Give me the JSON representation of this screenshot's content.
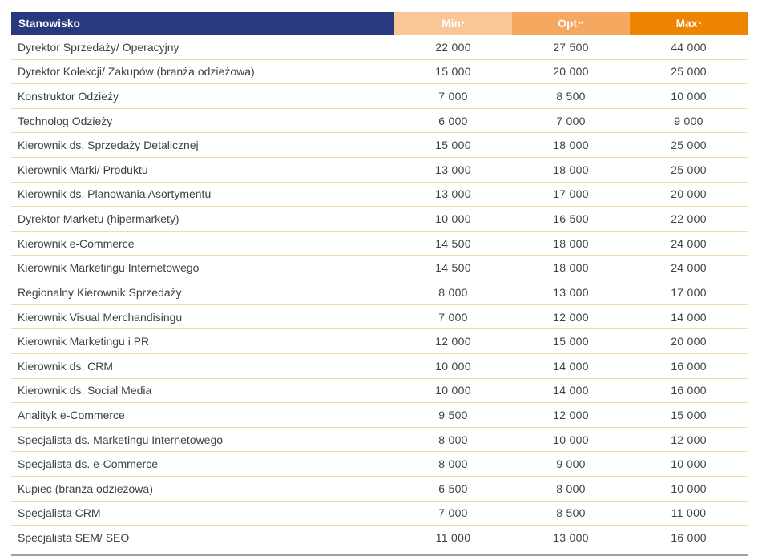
{
  "table": {
    "header": {
      "position": "Stanowisko",
      "min": "Min",
      "min_note": "*",
      "opt": "Opt",
      "opt_note": "**",
      "max": "Max",
      "max_note": "*"
    },
    "rows": [
      {
        "position": "Dyrektor Sprzedaży/ Operacyjny",
        "min": "22 000",
        "opt": "27 500",
        "max": "44 000"
      },
      {
        "position": "Dyrektor Kolekcji/ Zakupów (branża odzieżowa)",
        "min": "15 000",
        "opt": "20 000",
        "max": "25 000"
      },
      {
        "position": "Konstruktor Odzieży",
        "min": "7 000",
        "opt": "8 500",
        "max": "10 000"
      },
      {
        "position": "Technolog Odzieży",
        "min": "6 000",
        "opt": "7 000",
        "max": "9 000"
      },
      {
        "position": "Kierownik ds. Sprzedaży Detalicznej",
        "min": "15 000",
        "opt": "18 000",
        "max": "25 000"
      },
      {
        "position": "Kierownik Marki/ Produktu",
        "min": "13 000",
        "opt": "18 000",
        "max": "25 000"
      },
      {
        "position": "Kierownik ds. Planowania Asortymentu",
        "min": "13 000",
        "opt": "17 000",
        "max": "20 000"
      },
      {
        "position": "Dyrektor Marketu (hipermarkety)",
        "min": "10 000",
        "opt": "16 500",
        "max": "22 000"
      },
      {
        "position": "Kierownik e-Commerce",
        "min": "14 500",
        "opt": "18 000",
        "max": "24 000"
      },
      {
        "position": "Kierownik Marketingu Internetowego",
        "min": "14 500",
        "opt": "18 000",
        "max": "24 000"
      },
      {
        "position": "Regionalny Kierownik Sprzedaży",
        "min": "8 000",
        "opt": "13 000",
        "max": "17 000"
      },
      {
        "position": "Kierownik Visual Merchandisingu",
        "min": "7 000",
        "opt": "12 000",
        "max": "14 000"
      },
      {
        "position": "Kierownik Marketingu i PR",
        "min": "12 000",
        "opt": "15 000",
        "max": "20 000"
      },
      {
        "position": "Kierownik ds. CRM",
        "min": "10 000",
        "opt": "14 000",
        "max": "16 000"
      },
      {
        "position": "Kierownik ds. Social Media",
        "min": "10 000",
        "opt": "14 000",
        "max": "16 000"
      },
      {
        "position": "Analityk e-Commerce",
        "min": "9 500",
        "opt": "12 000",
        "max": "15 000"
      },
      {
        "position": "Specjalista ds. Marketingu Internetowego",
        "min": "8 000",
        "opt": "10 000",
        "max": "12 000"
      },
      {
        "position": "Specjalista ds. e-Commerce",
        "min": "8 000",
        "opt": "9 000",
        "max": "10 000"
      },
      {
        "position": "Kupiec (branża odzieżowa)",
        "min": "6 500",
        "opt": "8 000",
        "max": "10 000"
      },
      {
        "position": "Specjalista CRM",
        "min": "7 000",
        "opt": "8 500",
        "max": "11 000"
      },
      {
        "position": "Specjalista SEM/ SEO",
        "min": "11 000",
        "opt": "13 000",
        "max": "16 000"
      }
    ]
  },
  "colors": {
    "header_navy": "#283a7d",
    "min_column_orange": "#f9c696",
    "opt_column_orange": "#f5a85f",
    "max_column_orange": "#ee8500",
    "row_separator_tan": "#f3d9ab",
    "body_text": "#3e4245",
    "header_text": "#ffffff",
    "bottom_bar_gray": "#a0a0a8"
  }
}
